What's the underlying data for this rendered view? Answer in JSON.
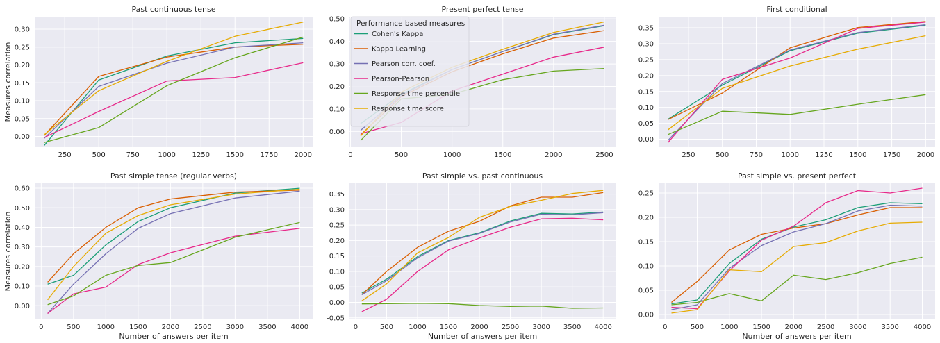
{
  "series_colors": {
    "Cohen's Kappa": "#1b9e77",
    "Kappa Learning": "#d95f02",
    "Pearson corr. coef.": "#7570b3",
    "Pearson-Pearson": "#e7298a",
    "Response time percentile": "#66a61e",
    "Response time score": "#e6ab02"
  },
  "legend": {
    "title": "Performance based measures",
    "entries": [
      "Cohen's Kappa",
      "Kappa Learning",
      "Pearson corr. coef.",
      "Pearson-Pearson",
      "Response time percentile",
      "Response time score"
    ],
    "placement": "upper-left of second panel"
  },
  "chart_data": [
    {
      "type": "line",
      "title": "Past continuous tense",
      "xlabel": "",
      "ylabel": "Measures correlation",
      "xlim": [
        30,
        2070
      ],
      "ylim": [
        -0.03,
        0.335
      ],
      "xticks": [
        250,
        500,
        750,
        1000,
        1250,
        1500,
        1750,
        2000
      ],
      "xtick_labels": [
        "250",
        "500",
        "750",
        "1000",
        "1250",
        "1500",
        "1750",
        "2000"
      ],
      "yticks": [
        0,
        0.05,
        0.1,
        0.15,
        0.2,
        0.25,
        0.3
      ],
      "ytick_labels": [
        "0.00",
        "0.05",
        "0.10",
        "0.15",
        "0.20",
        "0.25",
        "0.30"
      ],
      "x": [
        100,
        500,
        1000,
        1500,
        2000
      ],
      "series": [
        {
          "name": "Cohen's Kappa",
          "values": [
            -0.025,
            0.158,
            0.225,
            0.262,
            0.274
          ]
        },
        {
          "name": "Kappa Learning",
          "values": [
            0.003,
            0.168,
            0.222,
            0.25,
            0.258
          ]
        },
        {
          "name": "Pearson corr. coef.",
          "values": [
            -0.005,
            0.14,
            0.205,
            0.25,
            0.262
          ]
        },
        {
          "name": "Pearson-Pearson",
          "values": [
            -0.003,
            0.07,
            0.155,
            0.165,
            0.206
          ]
        },
        {
          "name": "Response time percentile",
          "values": [
            -0.017,
            0.025,
            0.142,
            0.22,
            0.278
          ]
        },
        {
          "name": "Response time score",
          "values": [
            0.005,
            0.128,
            0.21,
            0.28,
            0.32
          ]
        }
      ]
    },
    {
      "type": "line",
      "title": "Present perfect tense",
      "xlabel": "",
      "ylabel": "",
      "xlim": [
        -10,
        2610
      ],
      "ylim": [
        -0.07,
        0.51
      ],
      "xticks": [
        0,
        500,
        1000,
        1500,
        2000,
        2500
      ],
      "xtick_labels": [
        "0",
        "500",
        "1000",
        "1500",
        "2000",
        "2500"
      ],
      "yticks": [
        0,
        0.1,
        0.2,
        0.3,
        0.4,
        0.5
      ],
      "ytick_labels": [
        "0.00",
        "0.10",
        "0.20",
        "0.30",
        "0.40",
        "0.50"
      ],
      "x": [
        100,
        500,
        1000,
        1500,
        2000,
        2500
      ],
      "series": [
        {
          "name": "Cohen's Kappa",
          "values": [
            0.035,
            0.165,
            0.275,
            0.355,
            0.43,
            0.47
          ]
        },
        {
          "name": "Kappa Learning",
          "values": [
            -0.015,
            0.155,
            0.265,
            0.345,
            0.415,
            0.448
          ]
        },
        {
          "name": "Pearson corr. coef.",
          "values": [
            0.005,
            0.16,
            0.275,
            0.355,
            0.432,
            0.472
          ]
        },
        {
          "name": "Pearson-Pearson",
          "values": [
            -0.01,
            0.04,
            0.18,
            0.255,
            0.33,
            0.375
          ]
        },
        {
          "name": "Response time percentile",
          "values": [
            -0.04,
            0.145,
            0.165,
            0.23,
            0.268,
            0.28
          ]
        },
        {
          "name": "Response time score",
          "values": [
            -0.02,
            0.175,
            0.285,
            0.365,
            0.44,
            0.487
          ]
        }
      ]
    },
    {
      "type": "line",
      "title": "First conditional",
      "xlabel": "",
      "ylabel": "",
      "xlim": [
        30,
        2070
      ],
      "ylim": [
        -0.025,
        0.385
      ],
      "xticks": [
        250,
        500,
        750,
        1000,
        1250,
        1500,
        1750,
        2000
      ],
      "xtick_labels": [
        "250",
        "500",
        "750",
        "1000",
        "1250",
        "1500",
        "1750",
        "2000"
      ],
      "yticks": [
        0,
        0.05,
        0.1,
        0.15,
        0.2,
        0.25,
        0.3,
        0.35
      ],
      "ytick_labels": [
        "0.00",
        "0.05",
        "0.10",
        "0.15",
        "0.20",
        "0.25",
        "0.30",
        "0.35"
      ],
      "x": [
        100,
        500,
        1000,
        1500,
        2000
      ],
      "series": [
        {
          "name": "Cohen's Kappa",
          "values": [
            0.063,
            0.17,
            0.278,
            0.333,
            0.358
          ]
        },
        {
          "name": "Kappa Learning",
          "values": [
            0.062,
            0.145,
            0.287,
            0.351,
            0.37
          ]
        },
        {
          "name": "Pearson corr. coef.",
          "values": [
            -0.003,
            0.175,
            0.28,
            0.335,
            0.36
          ]
        },
        {
          "name": "Pearson-Pearson",
          "values": [
            -0.01,
            0.188,
            0.255,
            0.348,
            0.368
          ]
        },
        {
          "name": "Response time percentile",
          "values": [
            0.015,
            0.088,
            0.078,
            0.11,
            0.14
          ]
        },
        {
          "name": "Response time score",
          "values": [
            0.03,
            0.16,
            0.23,
            0.283,
            0.325
          ]
        }
      ]
    },
    {
      "type": "line",
      "title": "Past simple tense (regular verbs)",
      "xlabel": "Number of answers per item",
      "ylabel": "Measures correlation",
      "xlim": [
        -100,
        4200
      ],
      "ylim": [
        -0.07,
        0.625
      ],
      "xticks": [
        0,
        500,
        1000,
        1500,
        2000,
        2500,
        3000,
        3500,
        4000
      ],
      "xtick_labels": [
        "0",
        "500",
        "1000",
        "1500",
        "2000",
        "2500",
        "3000",
        "3500",
        "4000"
      ],
      "yticks": [
        0,
        0.1,
        0.2,
        0.3,
        0.4,
        0.5,
        0.6
      ],
      "ytick_labels": [
        "0.00",
        "0.10",
        "0.20",
        "0.30",
        "0.40",
        "0.50",
        "0.60"
      ],
      "x": [
        100,
        500,
        1000,
        1500,
        2000,
        3000,
        4000
      ],
      "series": [
        {
          "name": "Cohen's Kappa",
          "values": [
            0.11,
            0.155,
            0.31,
            0.43,
            0.5,
            0.575,
            0.6
          ]
        },
        {
          "name": "Kappa Learning",
          "values": [
            0.12,
            0.265,
            0.4,
            0.5,
            0.545,
            0.58,
            0.59
          ]
        },
        {
          "name": "Pearson corr. coef.",
          "values": [
            -0.04,
            0.11,
            0.265,
            0.395,
            0.47,
            0.55,
            0.585
          ]
        },
        {
          "name": "Pearson-Pearson",
          "values": [
            -0.04,
            0.06,
            0.095,
            0.21,
            0.27,
            0.355,
            0.395
          ]
        },
        {
          "name": "Response time percentile",
          "values": [
            0.005,
            0.05,
            0.155,
            0.205,
            0.22,
            0.35,
            0.425
          ]
        },
        {
          "name": "Response time score",
          "values": [
            0.03,
            0.2,
            0.37,
            0.46,
            0.515,
            0.57,
            0.595
          ]
        }
      ]
    },
    {
      "type": "line",
      "title": "Past simple vs. past continuous",
      "xlabel": "Number of answers per item",
      "ylabel": "",
      "xlim": [
        -100,
        4200
      ],
      "ylim": [
        -0.055,
        0.385
      ],
      "xticks": [
        0,
        500,
        1000,
        1500,
        2000,
        2500,
        3000,
        3500,
        4000
      ],
      "xtick_labels": [
        "0",
        "500",
        "1000",
        "1500",
        "2000",
        "2500",
        "3000",
        "3500",
        "4000"
      ],
      "yticks": [
        -0.05,
        0,
        0.05,
        0.1,
        0.15,
        0.2,
        0.25,
        0.3,
        0.35
      ],
      "ytick_labels": [
        "-0.05",
        "0.00",
        "0.05",
        "0.10",
        "0.15",
        "0.20",
        "0.25",
        "0.30",
        "0.35"
      ],
      "x": [
        100,
        500,
        1000,
        1500,
        2000,
        2500,
        3000,
        3500,
        4000
      ],
      "series": [
        {
          "name": "Cohen's Kappa",
          "values": [
            0.03,
            0.075,
            0.148,
            0.2,
            0.225,
            0.263,
            0.288,
            0.286,
            0.292
          ]
        },
        {
          "name": "Kappa Learning",
          "values": [
            0.025,
            0.1,
            0.178,
            0.23,
            0.262,
            0.312,
            0.34,
            0.34,
            0.355
          ]
        },
        {
          "name": "Pearson corr. coef.",
          "values": [
            0.025,
            0.07,
            0.144,
            0.198,
            0.223,
            0.26,
            0.285,
            0.283,
            0.29
          ]
        },
        {
          "name": "Pearson-Pearson",
          "values": [
            -0.03,
            0.01,
            0.1,
            0.17,
            0.208,
            0.243,
            0.27,
            0.272,
            0.267
          ]
        },
        {
          "name": "Response time percentile",
          "values": [
            -0.005,
            -0.004,
            -0.003,
            -0.004,
            -0.01,
            -0.013,
            -0.012,
            -0.019,
            -0.018
          ]
        },
        {
          "name": "Response time score",
          "values": [
            0.005,
            0.06,
            0.16,
            0.21,
            0.275,
            0.31,
            0.33,
            0.352,
            0.362
          ]
        }
      ]
    },
    {
      "type": "line",
      "title": "Past simple vs. present perfect",
      "xlabel": "Number of answers per item",
      "ylabel": "",
      "xlim": [
        -100,
        4200
      ],
      "ylim": [
        -0.01,
        0.27
      ],
      "xticks": [
        0,
        500,
        1000,
        1500,
        2000,
        2500,
        3000,
        3500,
        4000
      ],
      "xtick_labels": [
        "0",
        "500",
        "1000",
        "1500",
        "2000",
        "2500",
        "3000",
        "3500",
        "4000"
      ],
      "yticks": [
        0,
        0.05,
        0.1,
        0.15,
        0.2,
        0.25
      ],
      "ytick_labels": [
        "0.00",
        "0.05",
        "0.10",
        "0.15",
        "0.20",
        "0.25"
      ],
      "x": [
        100,
        500,
        1000,
        1500,
        2000,
        2500,
        3000,
        3500,
        4000
      ],
      "series": [
        {
          "name": "Cohen's Kappa",
          "values": [
            0.022,
            0.03,
            0.105,
            0.155,
            0.18,
            0.195,
            0.22,
            0.23,
            0.228
          ]
        },
        {
          "name": "Kappa Learning",
          "values": [
            0.025,
            0.068,
            0.133,
            0.165,
            0.178,
            0.187,
            0.205,
            0.22,
            0.22
          ]
        },
        {
          "name": "Pearson corr. coef.",
          "values": [
            0.01,
            0.02,
            0.095,
            0.142,
            0.17,
            0.187,
            0.213,
            0.225,
            0.223
          ]
        },
        {
          "name": "Pearson-Pearson",
          "values": [
            0.015,
            0.012,
            0.09,
            0.153,
            0.182,
            0.23,
            0.255,
            0.25,
            0.26
          ]
        },
        {
          "name": "Response time percentile",
          "values": [
            0.02,
            0.025,
            0.043,
            0.028,
            0.081,
            0.072,
            0.086,
            0.105,
            0.118
          ]
        },
        {
          "name": "Response time score",
          "values": [
            0.003,
            0.01,
            0.092,
            0.088,
            0.14,
            0.148,
            0.172,
            0.188,
            0.19
          ]
        }
      ]
    }
  ]
}
